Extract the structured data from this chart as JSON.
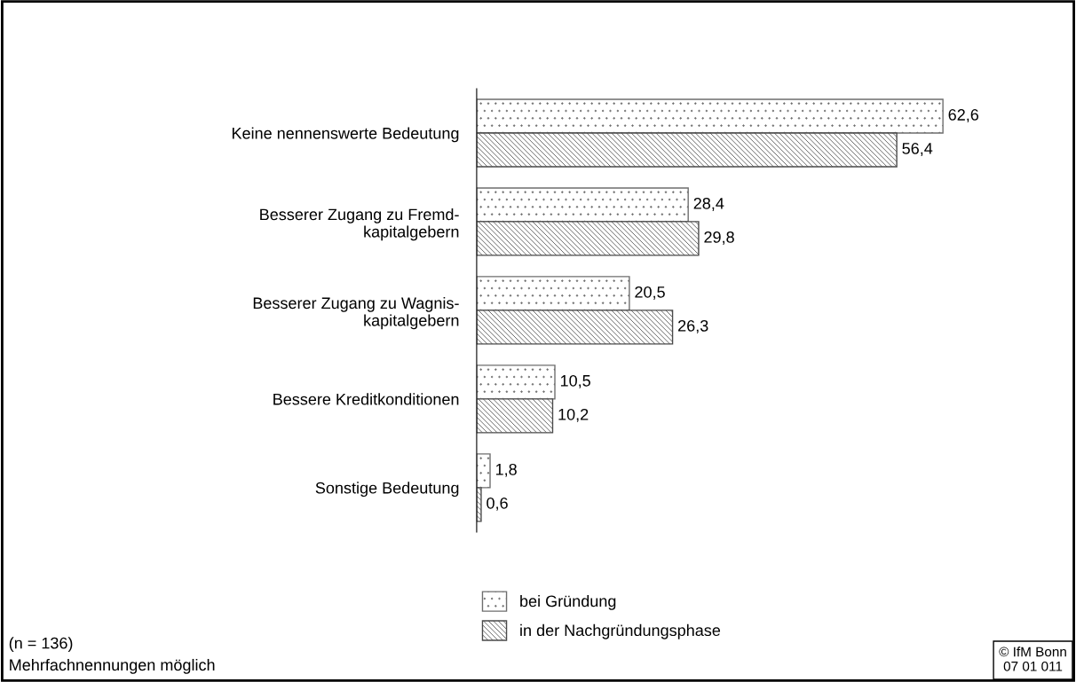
{
  "chart_data": {
    "type": "bar",
    "orientation": "horizontal",
    "categories": [
      "Keine nennenswerte Bedeutung",
      "Besserer Zugang zu Fremd-\nkapitalgebern",
      "Besserer Zugang zu Wagnis-\nkapitalgebern",
      "Bessere Kreditkonditionen",
      "Sonstige Bedeutung"
    ],
    "series": [
      {
        "name": "bei Gründung",
        "color": "#6e6e6e",
        "values": [
          62.6,
          28.4,
          20.5,
          10.5,
          1.8
        ],
        "value_labels": [
          "62,6",
          "28,4",
          "20,5",
          "10,5",
          "1,8"
        ]
      },
      {
        "name": "in der Nachgründungsphase",
        "color": "#4a4a4a",
        "values": [
          56.4,
          29.8,
          26.3,
          10.2,
          0.6
        ],
        "value_labels": [
          "56,4",
          "29,8",
          "26,3",
          "10,2",
          "0,6"
        ]
      }
    ],
    "legend": "bottom",
    "grid": false,
    "tick_labels": "y",
    "annotations": [
      "(n = 136)\nMehrfachnennungen möglich",
      "© IfM Bonn\n07 01 011"
    ]
  }
}
